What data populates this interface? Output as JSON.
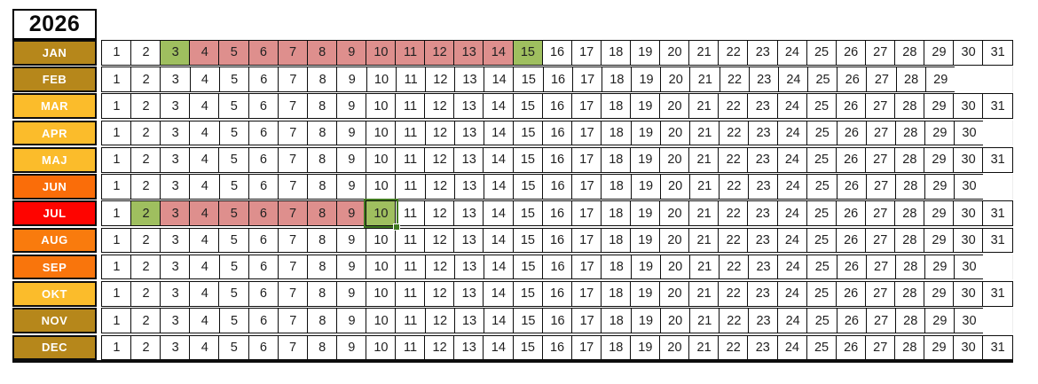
{
  "year": "2026",
  "columns": 31,
  "selection": {
    "month": "JUL",
    "day": 10
  },
  "palette": {
    "green_highlight": "#9FBF5F",
    "pink_highlight": "#DE8F8D",
    "selection_border": "#40781F",
    "grid_border": "#0D0D0D"
  },
  "months": [
    {
      "label": "JAN",
      "days": 31,
      "color": "#B6871B",
      "green": [
        3,
        15
      ],
      "pink": [
        4,
        5,
        6,
        7,
        8,
        9,
        10,
        11,
        12,
        13,
        14
      ]
    },
    {
      "label": "FEB",
      "days": 29,
      "color": "#B6871B",
      "green": [],
      "pink": []
    },
    {
      "label": "MAR",
      "days": 31,
      "color": "#FBBC2B",
      "green": [],
      "pink": []
    },
    {
      "label": "APR",
      "days": 30,
      "color": "#FBBC2B",
      "green": [],
      "pink": []
    },
    {
      "label": "MAJ",
      "days": 31,
      "color": "#FBBC2B",
      "green": [],
      "pink": []
    },
    {
      "label": "JUN",
      "days": 30,
      "color": "#FA6D09",
      "green": [],
      "pink": []
    },
    {
      "label": "JUL",
      "days": 31,
      "color": "#FE0400",
      "green": [
        2,
        10
      ],
      "pink": [
        3,
        4,
        5,
        6,
        7,
        8,
        9
      ]
    },
    {
      "label": "AUG",
      "days": 31,
      "color": "#F97B0D",
      "green": [],
      "pink": []
    },
    {
      "label": "SEP",
      "days": 30,
      "color": "#F9750C",
      "green": [],
      "pink": []
    },
    {
      "label": "OKT",
      "days": 31,
      "color": "#FBBC2B",
      "green": [],
      "pink": []
    },
    {
      "label": "NOV",
      "days": 30,
      "color": "#B6871B",
      "green": [],
      "pink": []
    },
    {
      "label": "DEC",
      "days": 31,
      "color": "#B6871B",
      "green": [],
      "pink": []
    }
  ]
}
